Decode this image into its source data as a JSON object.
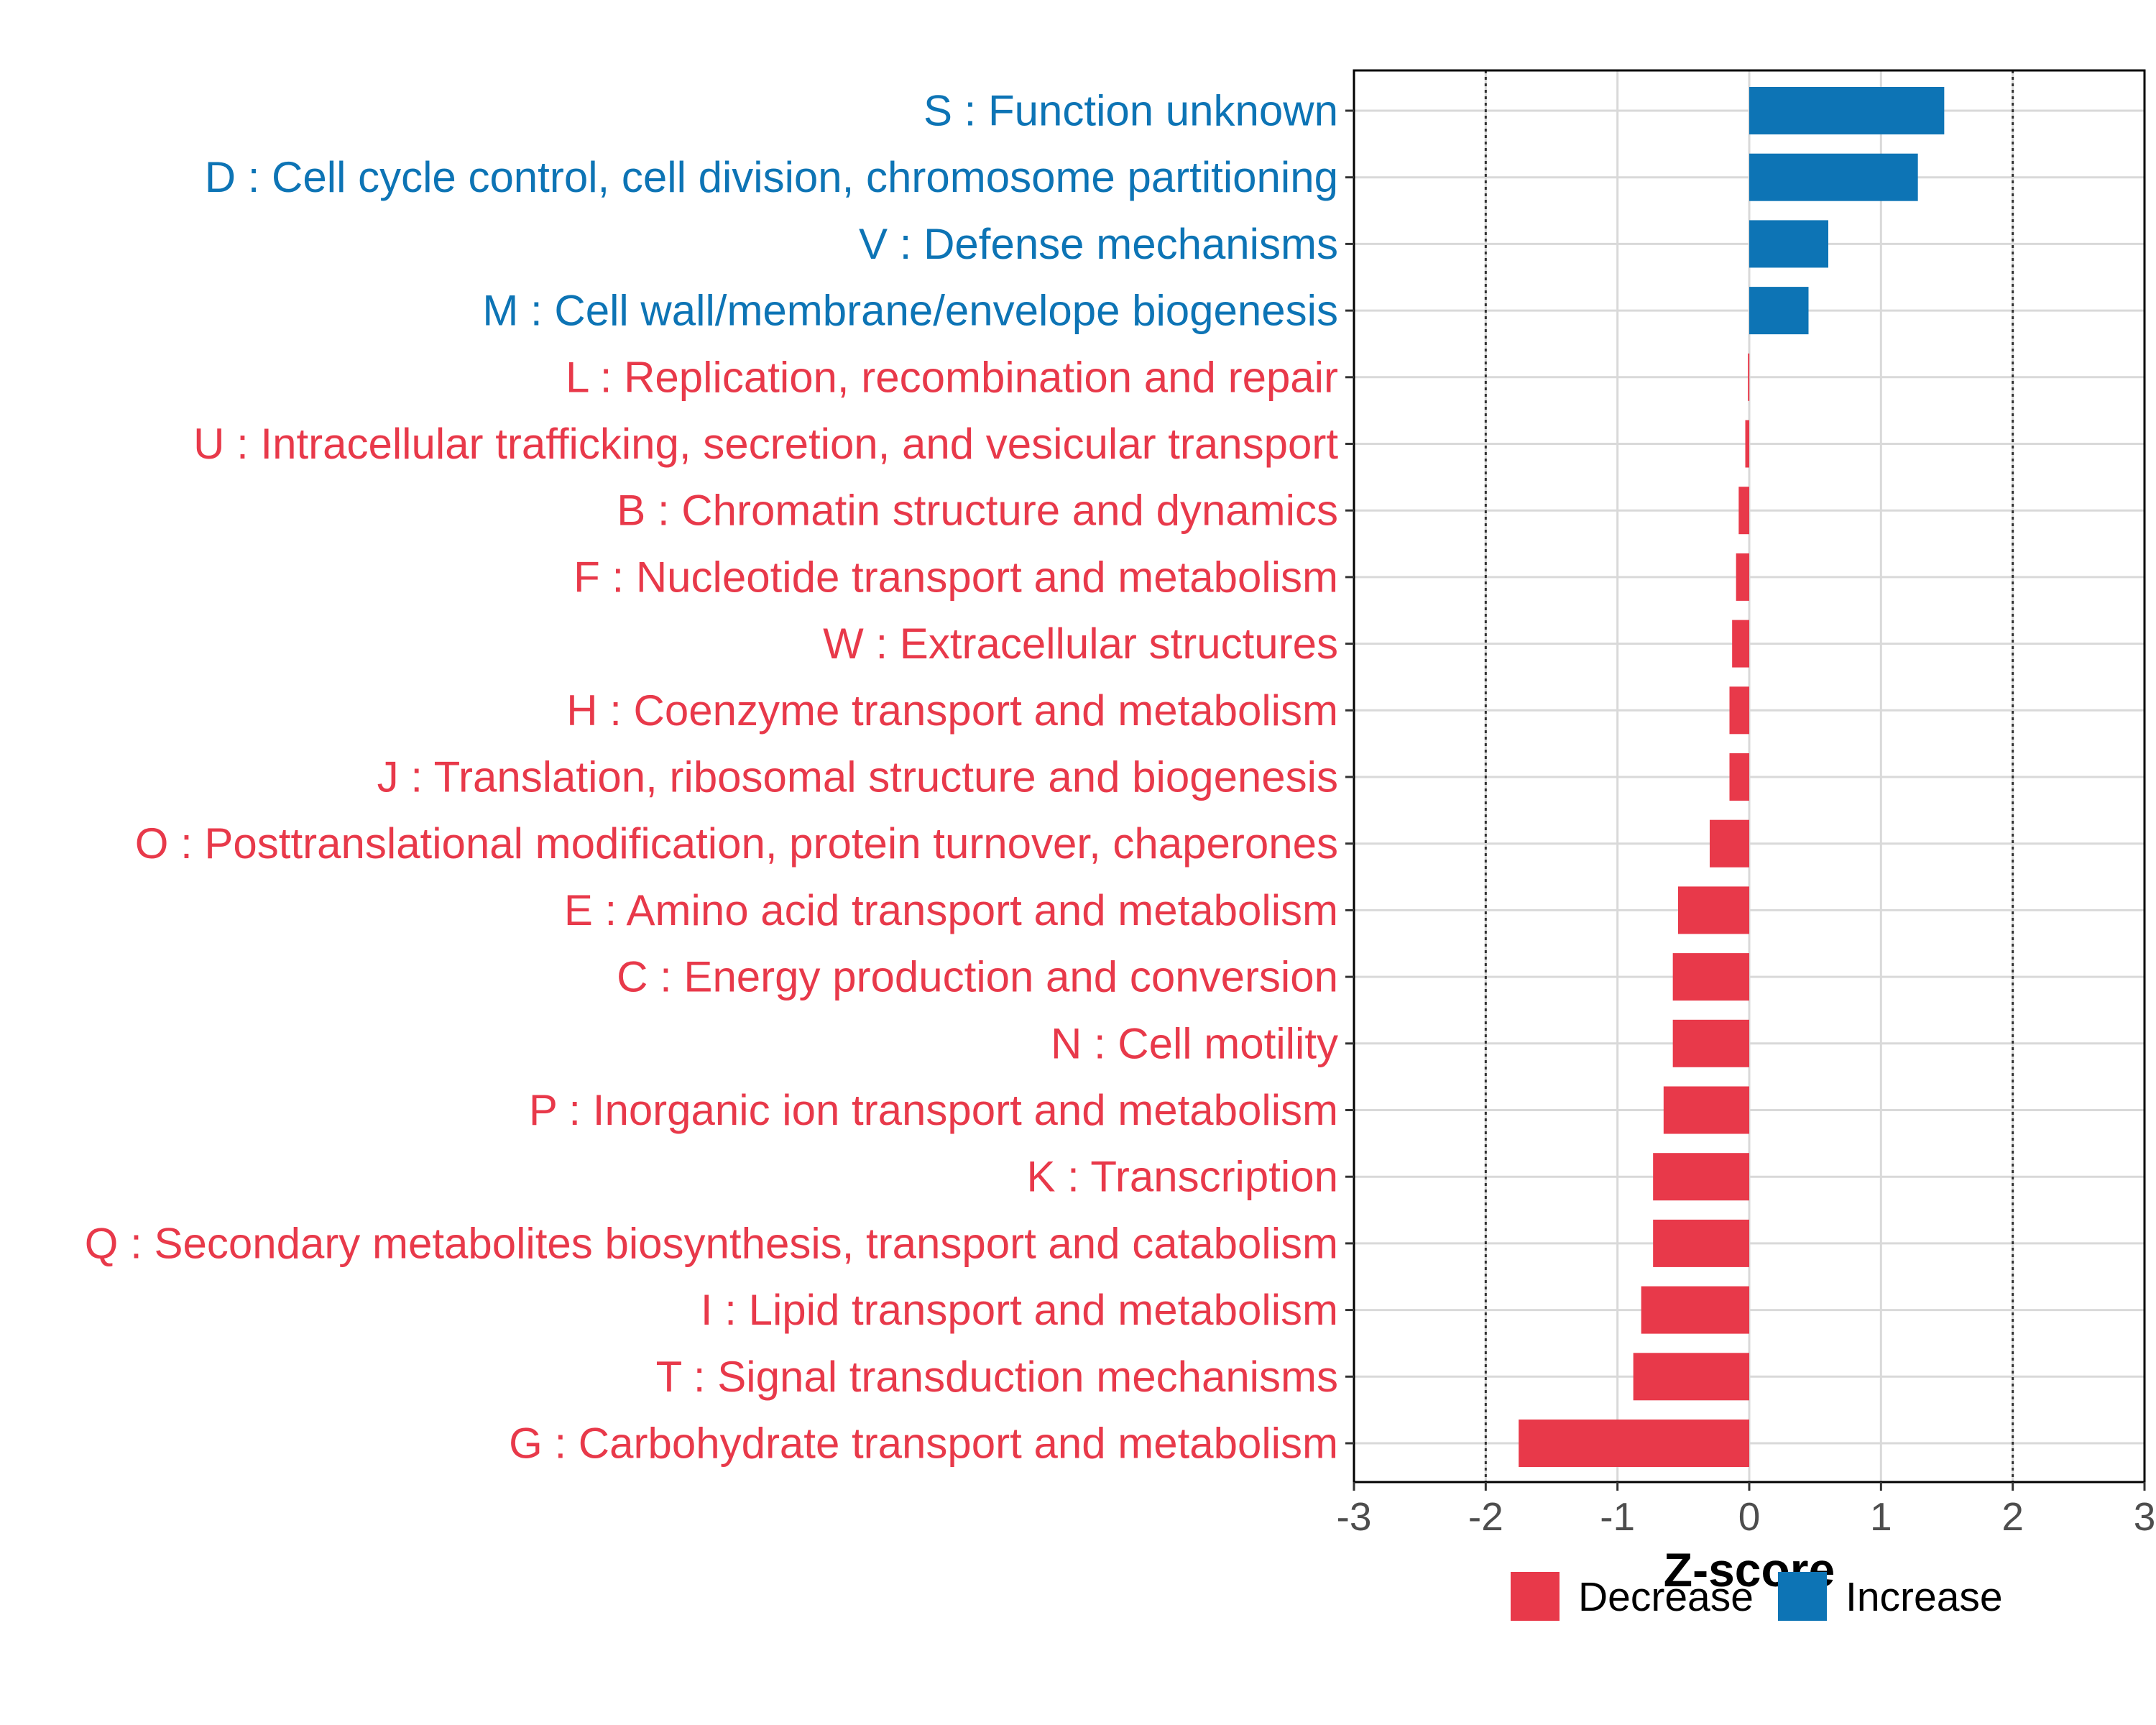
{
  "chart_data": {
    "type": "bar",
    "orientation": "horizontal",
    "xlabel": "Z-score",
    "xlim": [
      -3,
      3
    ],
    "xticks": [
      "-3",
      "-2",
      "-1",
      "0",
      "1",
      "2",
      "3"
    ],
    "threshold_lines": [
      -2,
      2
    ],
    "grid": true,
    "categories": [
      "S : Function unknown",
      "D : Cell cycle control, cell division, chromosome partitioning",
      "V : Defense mechanisms",
      "M : Cell wall/membrane/envelope biogenesis",
      "L : Replication, recombination and repair",
      "U : Intracellular trafficking, secretion, and vesicular transport",
      "B : Chromatin structure and dynamics",
      "F : Nucleotide transport and metabolism",
      "W : Extracellular structures",
      "H : Coenzyme transport and metabolism",
      "J : Translation, ribosomal structure and biogenesis",
      "O : Posttranslational modification, protein turnover, chaperones",
      "E : Amino acid transport and metabolism",
      "C : Energy production and conversion",
      "N : Cell motility",
      "P : Inorganic ion transport and metabolism",
      "K : Transcription",
      "Q : Secondary metabolites biosynthesis, transport and catabolism",
      "I : Lipid transport and metabolism",
      "T : Signal transduction mechanisms",
      "G : Carbohydrate transport and metabolism"
    ],
    "values": [
      1.48,
      1.28,
      0.6,
      0.45,
      -0.01,
      -0.03,
      -0.08,
      -0.1,
      -0.13,
      -0.15,
      -0.15,
      -0.3,
      -0.54,
      -0.58,
      -0.58,
      -0.65,
      -0.73,
      -0.73,
      -0.82,
      -0.88,
      -1.75
    ],
    "groups": [
      "Increase",
      "Increase",
      "Increase",
      "Increase",
      "Decrease",
      "Decrease",
      "Decrease",
      "Decrease",
      "Decrease",
      "Decrease",
      "Decrease",
      "Decrease",
      "Decrease",
      "Decrease",
      "Decrease",
      "Decrease",
      "Decrease",
      "Decrease",
      "Decrease",
      "Decrease",
      "Decrease"
    ],
    "legend": {
      "position": "bottom",
      "entries": [
        {
          "label": "Decrease",
          "color": "#e8394a"
        },
        {
          "label": "Increase",
          "color": "#0d74b5"
        }
      ]
    }
  },
  "colors": {
    "increase": "#0d74b5",
    "decrease": "#e8394a",
    "grid": "#d9d9d9",
    "threshold": "#333333",
    "panel_border": "#000000",
    "tick_text": "#4d4d4d"
  }
}
